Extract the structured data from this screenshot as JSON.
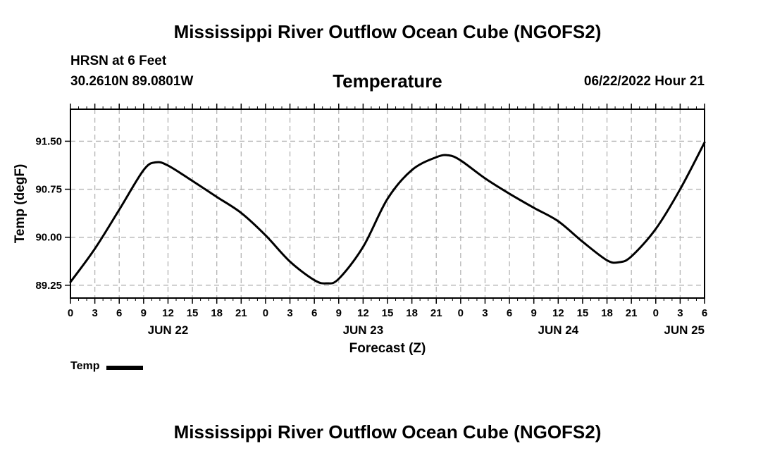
{
  "page": {
    "title": "Mississippi River Outflow Ocean Cube (NGOFS2)",
    "footer_title": "Mississippi River Outflow Ocean Cube (NGOFS2)",
    "station": "HRSN at 6 Feet",
    "coordinates": "30.2610N  89.0801W",
    "subtitle": "Temperature",
    "forecast_time": "06/22/2022 Hour 21"
  },
  "chart_data": {
    "type": "line",
    "title": "Temperature",
    "xlabel": "Forecast (Z)",
    "ylabel": "Temp (degF)",
    "x_units": "hours since JUN 22 00Z",
    "xlim": [
      0,
      78
    ],
    "ylim": [
      89.05,
      92.0
    ],
    "grid": true,
    "y_ticks": [
      89.25,
      90.0,
      90.75,
      91.5
    ],
    "y_tick_labels": [
      "89.25",
      "90.00",
      "90.75",
      "91.50"
    ],
    "x_ticks": [
      0,
      3,
      6,
      9,
      12,
      15,
      18,
      21,
      24,
      27,
      30,
      33,
      36,
      39,
      42,
      45,
      48,
      51,
      54,
      57,
      60,
      63,
      66,
      69,
      72,
      75,
      78
    ],
    "x_tick_labels": [
      "0",
      "3",
      "6",
      "9",
      "12",
      "15",
      "18",
      "21",
      "0",
      "3",
      "6",
      "9",
      "12",
      "15",
      "18",
      "21",
      "0",
      "3",
      "6",
      "9",
      "12",
      "15",
      "18",
      "21",
      "0",
      "3",
      "6"
    ],
    "day_labels": [
      {
        "x": 12,
        "label": "JUN 22"
      },
      {
        "x": 36,
        "label": "JUN 23"
      },
      {
        "x": 60,
        "label": "JUN 24"
      },
      {
        "x": 78,
        "label": "JUN 25"
      }
    ],
    "legend": [
      "Temp"
    ],
    "legend_position": "bottom-left",
    "series": [
      {
        "name": "Temp",
        "color": "#000000",
        "x": [
          0,
          3,
          6,
          9,
          10.5,
          12,
          15,
          18,
          21,
          24,
          27,
          30,
          31.5,
          33,
          36,
          39,
          42,
          45,
          46.5,
          48,
          51,
          54,
          57,
          60,
          63,
          66,
          67.5,
          69,
          72,
          75,
          78
        ],
        "y": [
          89.3,
          89.82,
          90.43,
          91.05,
          91.17,
          91.12,
          90.88,
          90.63,
          90.38,
          90.03,
          89.62,
          89.33,
          89.28,
          89.35,
          89.85,
          90.6,
          91.05,
          91.25,
          91.28,
          91.2,
          90.92,
          90.68,
          90.46,
          90.25,
          89.93,
          89.64,
          89.61,
          89.7,
          90.13,
          90.75,
          91.48
        ]
      }
    ]
  }
}
